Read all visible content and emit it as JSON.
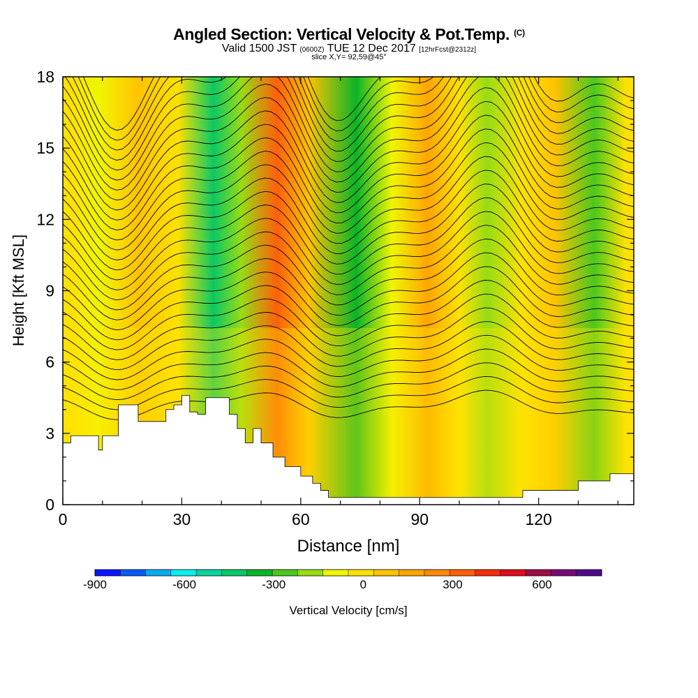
{
  "header": {
    "title": "Angled Section: Vertical Velocity & Pot.Temp.",
    "title_unit": "(C)",
    "valid_prefix": "Valid 1500 JST",
    "valid_utc": "(0600Z)",
    "valid_date": "TUE 12 Dec 2017",
    "forecast": "[12hrFcst@2312z]",
    "slice": "slice X,Y= 92,59@45°"
  },
  "chart_data": {
    "type": "heatmap",
    "xlabel": "Distance [nm]",
    "ylabel": "Height [Kft MSL]",
    "xlim": [
      0,
      144
    ],
    "ylim": [
      0,
      18
    ],
    "xticks": [
      0,
      30,
      60,
      90,
      120
    ],
    "yticks": [
      0,
      3,
      6,
      9,
      12,
      15,
      18
    ],
    "xtick_labels": [
      "0",
      "30",
      "60",
      "90",
      "120"
    ],
    "ytick_labels": [
      "0",
      "3",
      "6",
      "9",
      "12",
      "15",
      "18"
    ],
    "colorbar": {
      "label": "Vertical Velocity [cm/s]",
      "min": -900,
      "max": 800,
      "step": 100,
      "tick_values": [
        -900,
        -600,
        -300,
        0,
        300,
        600
      ],
      "tick_labels": [
        "-900",
        "-600",
        "-300",
        "0",
        "300",
        "600"
      ],
      "colors": [
        "#0a14ff",
        "#0a5af5",
        "#0aaaf0",
        "#0aeeee",
        "#0ad2a0",
        "#0ac864",
        "#0ab428",
        "#4bc81e",
        "#96dc14",
        "#f0f500",
        "#ffe100",
        "#ffc300",
        "#ffa500",
        "#ff870a",
        "#ff5f0a",
        "#f52d0a",
        "#e10a1e",
        "#a00a46",
        "#780a78",
        "#500a8c"
      ]
    },
    "velocity_bands": [
      {
        "center": 2,
        "value": 150
      },
      {
        "center": 9,
        "value": 50
      },
      {
        "center": 19,
        "value": 200
      },
      {
        "center": 29,
        "value": 100
      },
      {
        "center": 38,
        "value": -350
      },
      {
        "center": 45,
        "value": -50
      },
      {
        "center": 54,
        "value": 500
      },
      {
        "center": 62,
        "value": 200
      },
      {
        "center": 74,
        "value": -250
      },
      {
        "center": 83,
        "value": 50
      },
      {
        "center": 92,
        "value": 300
      },
      {
        "center": 100,
        "value": 100
      },
      {
        "center": 107,
        "value": -100
      },
      {
        "center": 116,
        "value": 150
      },
      {
        "center": 124,
        "value": 250
      },
      {
        "center": 134,
        "value": -200
      },
      {
        "center": 142,
        "value": 100
      }
    ],
    "terrain_top": [
      [
        0,
        2.6
      ],
      [
        2,
        2.9
      ],
      [
        8,
        2.9
      ],
      [
        9,
        2.3
      ],
      [
        10,
        2.9
      ],
      [
        12,
        2.9
      ],
      [
        14,
        4.2
      ],
      [
        17,
        4.2
      ],
      [
        19,
        3.5
      ],
      [
        20,
        3.5
      ],
      [
        24,
        3.5
      ],
      [
        26,
        4.0
      ],
      [
        28,
        4.2
      ],
      [
        30,
        4.6
      ],
      [
        32,
        3.9
      ],
      [
        34,
        3.8
      ],
      [
        36,
        4.5
      ],
      [
        40,
        4.5
      ],
      [
        42,
        3.8
      ],
      [
        44,
        3.2
      ],
      [
        46,
        2.6
      ],
      [
        48,
        3.2
      ],
      [
        50,
        2.6
      ],
      [
        53,
        2.0
      ],
      [
        56,
        1.6
      ],
      [
        60,
        1.2
      ],
      [
        63,
        0.9
      ],
      [
        65,
        0.6
      ],
      [
        67,
        0.3
      ],
      [
        70,
        0.3
      ],
      [
        114,
        0.3
      ],
      [
        116,
        0.6
      ],
      [
        128,
        0.6
      ],
      [
        130,
        1.0
      ],
      [
        138,
        1.3
      ],
      [
        144,
        1.3
      ]
    ],
    "potential_temperature_contours": {
      "step": 1,
      "count": 30
    }
  }
}
